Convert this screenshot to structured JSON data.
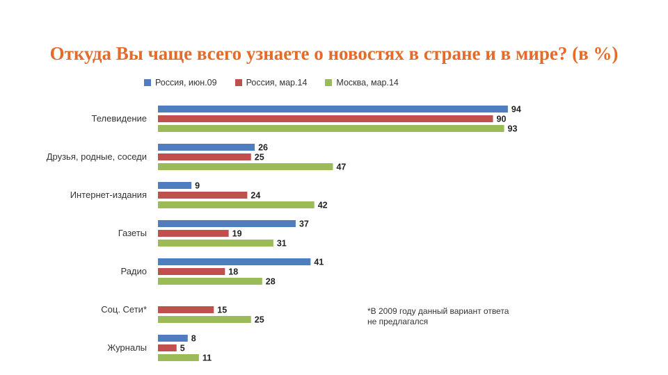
{
  "title": "Откуда Вы чаще всего узнаете о новостях в стране и в мире? (в %)",
  "footnote": [
    "*В 2009 году данный вариант ответа",
    "не предлагался"
  ],
  "colors": {
    "s0": "#4f7ec0",
    "s1": "#c0504d",
    "s2": "#9bbb59"
  },
  "chart_data": {
    "type": "bar",
    "orientation": "horizontal",
    "title": "Откуда Вы чаще всего узнаете о новостях в стране и в мире? (в %)",
    "categories": [
      "Телевидение",
      "Друзья, родные, соседи",
      "Интернет-издания",
      "Газеты",
      "Радио",
      "Соц. Сети*",
      "Журналы"
    ],
    "series": [
      {
        "name": "Россия, июн.09",
        "values": [
          94,
          26,
          9,
          37,
          41,
          null,
          8
        ]
      },
      {
        "name": "Россия, мар.14",
        "values": [
          90,
          25,
          24,
          19,
          18,
          15,
          5
        ]
      },
      {
        "name": "Москва, мар.14",
        "values": [
          93,
          47,
          42,
          31,
          28,
          25,
          11
        ]
      }
    ],
    "xlim": [
      0,
      100
    ],
    "legend": "top",
    "grid": false,
    "data_labels": true
  }
}
